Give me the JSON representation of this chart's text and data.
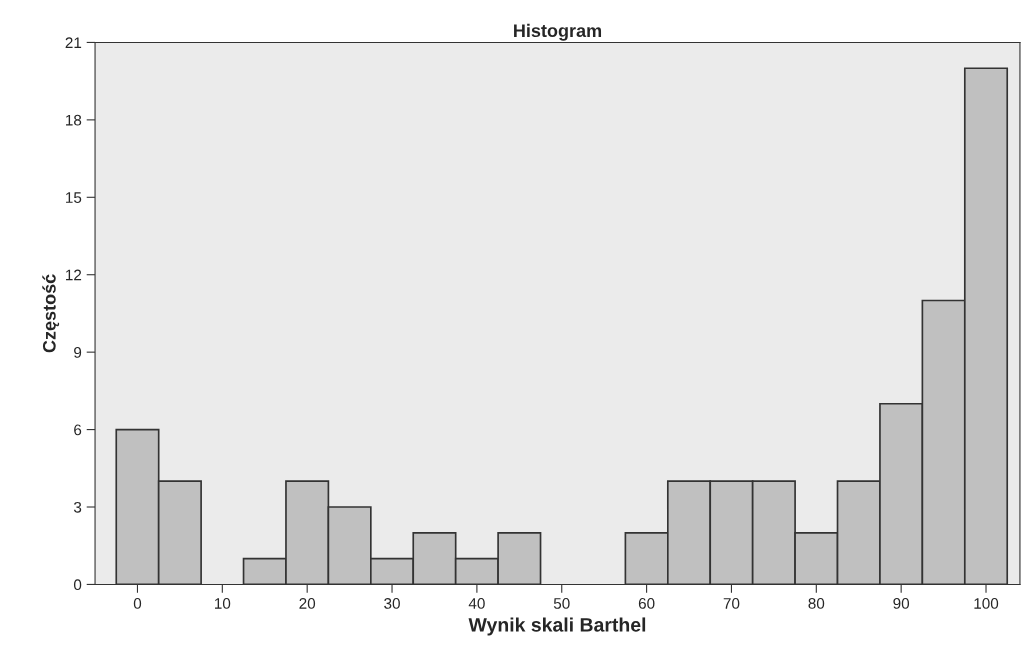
{
  "chart_data": {
    "type": "histogram",
    "title": "Histogram",
    "xlabel": "Wynik skali Barthel",
    "ylabel": "Częstość",
    "bins": [
      -2.5,
      2.5,
      7.5,
      12.5,
      17.5,
      22.5,
      27.5,
      32.5,
      37.5,
      42.5,
      47.5,
      52.5,
      57.5,
      62.5,
      67.5,
      72.5,
      77.5,
      82.5,
      87.5,
      92.5,
      97.5,
      102.5
    ],
    "values": [
      6,
      4,
      0,
      1,
      4,
      3,
      1,
      2,
      1,
      2,
      0,
      0,
      2,
      4,
      4,
      4,
      2,
      4,
      7,
      11,
      20
    ],
    "color": "#c0c0c0",
    "xlim": [
      -5,
      104
    ],
    "xticks": [
      0,
      10,
      20,
      30,
      40,
      50,
      60,
      70,
      80,
      90,
      100
    ],
    "ylim": [
      0,
      21
    ],
    "yticks": [
      0,
      3,
      6,
      9,
      12,
      15,
      18,
      21
    ],
    "grid": false,
    "legend": false
  }
}
